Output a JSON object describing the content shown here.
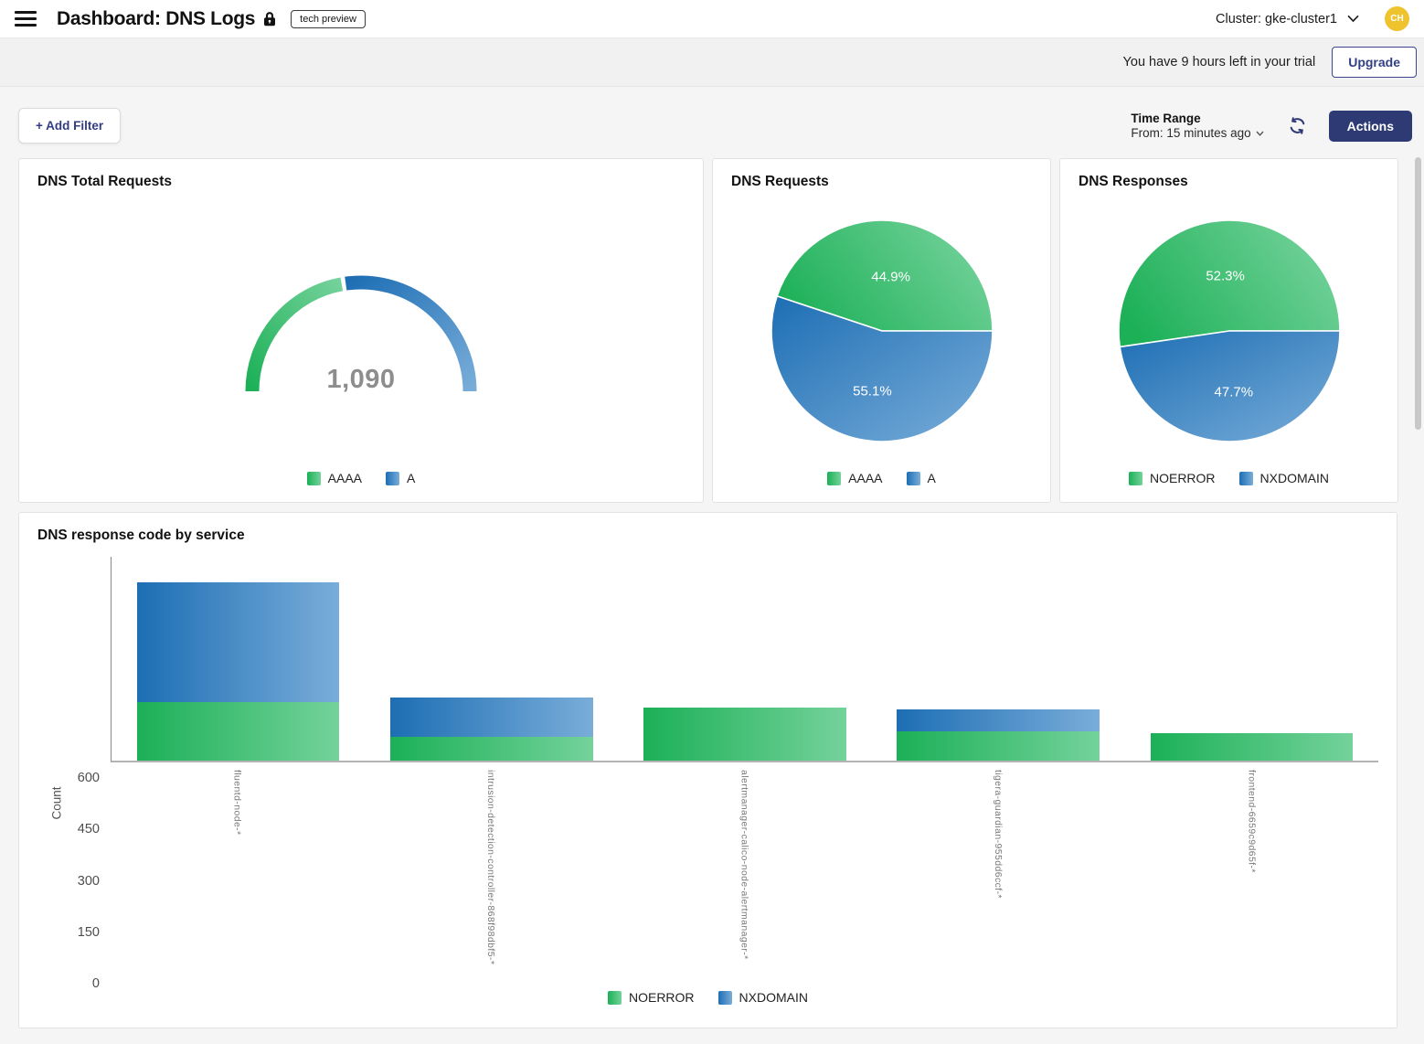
{
  "topbar": {
    "title": "Dashboard: DNS Logs",
    "badge": "tech preview",
    "cluster_label": "Cluster: gke-cluster1",
    "avatar_initials": "CH"
  },
  "trial": {
    "message": "You have 9 hours left in your trial",
    "upgrade_label": "Upgrade"
  },
  "toolbar": {
    "add_filter_label": "+ Add Filter",
    "time_range_title": "Time Range",
    "time_range_value": "From: 15 minutes ago",
    "actions_label": "Actions"
  },
  "colors": {
    "green_from": "#1cb057",
    "green_to": "#74d29b",
    "blue_from": "#1d6eb4",
    "blue_to": "#79add9",
    "navy": "#2e3a74",
    "gold": "#eec32d",
    "gauge_number_gray": "#8d8d8d"
  },
  "chart_data": [
    {
      "id": "dns_total_requests",
      "type": "gauge",
      "title": "DNS Total Requests",
      "center_label": "1,090",
      "total": 1090,
      "series": [
        {
          "name": "AAAA",
          "pct": 44.9,
          "color": "green"
        },
        {
          "name": "A",
          "pct": 55.1,
          "color": "blue"
        }
      ],
      "legend": [
        "AAAA",
        "A"
      ]
    },
    {
      "id": "dns_requests",
      "type": "pie",
      "title": "DNS Requests",
      "slices": [
        {
          "name": "AAAA",
          "pct": 44.9,
          "label": "44.9%",
          "color": "green"
        },
        {
          "name": "A",
          "pct": 55.1,
          "label": "55.1%",
          "color": "blue"
        }
      ],
      "legend": [
        "AAAA",
        "A"
      ],
      "legend_position": "bottom"
    },
    {
      "id": "dns_responses",
      "type": "pie",
      "title": "DNS Responses",
      "slices": [
        {
          "name": "NOERROR",
          "pct": 52.3,
          "label": "52.3%",
          "color": "green"
        },
        {
          "name": "NXDOMAIN",
          "pct": 47.7,
          "label": "47.7%",
          "color": "blue"
        }
      ],
      "legend": [
        "NOERROR",
        "NXDOMAIN"
      ],
      "legend_position": "bottom"
    },
    {
      "id": "dns_response_code_by_service",
      "type": "bar",
      "title": "DNS response code by service",
      "xlabel": "",
      "ylabel": "Count",
      "ylim": [
        0,
        600
      ],
      "yticks": [
        0,
        150,
        300,
        450,
        600
      ],
      "grid": false,
      "stacked": true,
      "categories": [
        "fluentd-node-*",
        "intrusion-detection-controller-868f98dbf5-*",
        "alertmanager-calico-node-alertmanager-*",
        "tigera-guardian-955dd6ccf-*",
        "frontend-6659c9d65f-*"
      ],
      "series": [
        {
          "name": "NOERROR",
          "color": "green",
          "values": [
            170,
            70,
            155,
            85,
            80
          ]
        },
        {
          "name": "NXDOMAIN",
          "color": "blue",
          "values": [
            350,
            115,
            0,
            65,
            0
          ]
        }
      ],
      "legend": [
        "NOERROR",
        "NXDOMAIN"
      ],
      "legend_position": "bottom"
    }
  ]
}
